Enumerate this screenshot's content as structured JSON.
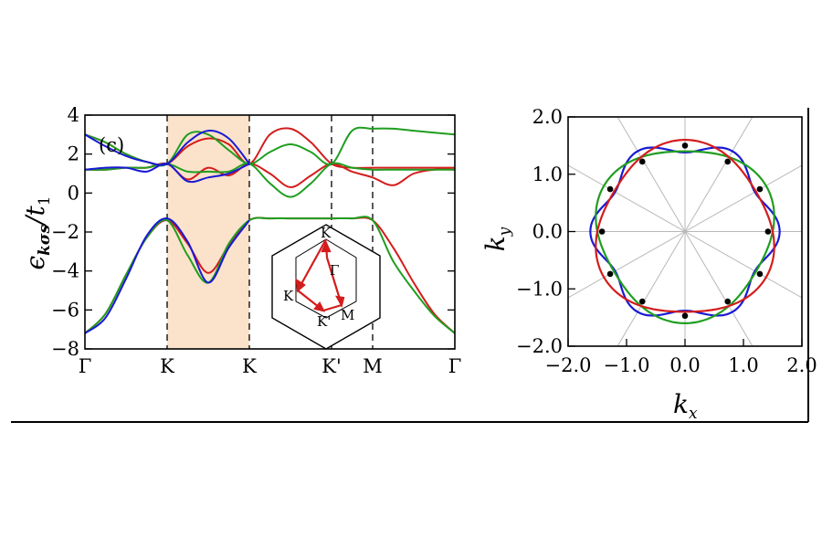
{
  "chart_data": [
    {
      "type": "line",
      "panel_label": "(c)",
      "xlabel": "",
      "ylabel": "ϵ_{kσs}/t_1",
      "ylabel_parts": {
        "base": "ϵ",
        "sub": "kσs",
        "over": "/t",
        "over_sub": "1"
      },
      "ylim": [
        -8,
        4
      ],
      "yticks": [
        4,
        2,
        0,
        -2,
        -4,
        -6,
        -8
      ],
      "ytick_labels": [
        "4",
        "2",
        "0",
        "−2",
        "−4",
        "−6",
        "−8"
      ],
      "xticks": [
        0,
        1,
        2,
        3,
        3.5,
        4.5
      ],
      "xtick_labels": [
        "Γ",
        "K",
        "K",
        "K'",
        "M",
        "Γ"
      ],
      "xlim": [
        0,
        4.5
      ],
      "dashed_vlines": [
        1,
        2,
        3,
        3.5
      ],
      "highlight_region": {
        "x": [
          1,
          2
        ],
        "color": "#fbe2cb"
      },
      "series_colors": [
        "#d41c1c",
        "#1f9e1f",
        "#1a1ad4"
      ],
      "series": [
        {
          "color": "#d41c1c",
          "bands": [
            {
              "x": [
                0,
                0.25,
                0.5,
                0.75,
                1,
                1.25,
                1.5,
                1.75,
                2,
                2.25,
                2.5,
                2.75,
                3,
                3.25,
                3.5,
                3.75,
                4,
                4.25,
                4.5
              ],
              "y": [
                3.0,
                2.6,
                2.0,
                1.6,
                1.5,
                2.4,
                2.8,
                2.5,
                1.5,
                3.0,
                3.3,
                2.6,
                1.5,
                1.3,
                1.3,
                1.3,
                1.3,
                1.3,
                1.3
              ]
            },
            {
              "x": [
                0,
                0.25,
                0.5,
                0.75,
                1,
                1.25,
                1.5,
                1.75,
                2,
                2.25,
                2.5,
                2.75,
                3,
                3.25,
                3.5,
                3.75,
                4,
                4.25,
                4.5
              ],
              "y": [
                1.2,
                1.2,
                1.3,
                1.3,
                1.5,
                0.7,
                1.3,
                0.9,
                1.5,
                1.0,
                0.3,
                0.9,
                1.5,
                1.1,
                0.8,
                0.4,
                1.0,
                1.2,
                1.2
              ]
            },
            {
              "x": [
                0,
                0.25,
                0.5,
                0.75,
                1,
                1.25,
                1.5,
                1.75,
                2,
                2.25,
                2.5,
                2.75,
                3,
                3.25,
                3.5,
                3.75,
                4,
                4.25,
                4.5
              ],
              "y": [
                -7.2,
                -6.2,
                -4.2,
                -2.3,
                -1.4,
                -2.6,
                -4.1,
                -2.7,
                -1.4,
                -1.3,
                -1.3,
                -1.3,
                -1.3,
                -1.3,
                -1.4,
                -2.8,
                -4.6,
                -6.2,
                -7.2
              ]
            }
          ]
        },
        {
          "color": "#1f9e1f",
          "bands": [
            {
              "x": [
                0,
                0.25,
                0.5,
                0.75,
                1,
                1.25,
                1.5,
                1.75,
                2,
                2.25,
                2.5,
                2.75,
                3,
                3.25,
                3.5,
                3.75,
                4,
                4.25,
                4.5
              ],
              "y": [
                3.0,
                2.6,
                2.0,
                1.6,
                1.5,
                3.0,
                3.0,
                2.2,
                1.5,
                2.1,
                2.5,
                2.1,
                1.5,
                3.2,
                3.3,
                3.3,
                3.2,
                3.1,
                3.0
              ]
            },
            {
              "x": [
                0,
                0.25,
                0.5,
                0.75,
                1,
                1.25,
                1.5,
                1.75,
                2,
                2.25,
                2.5,
                2.75,
                3,
                3.25,
                3.5,
                3.75,
                4,
                4.25,
                4.5
              ],
              "y": [
                1.2,
                1.2,
                1.3,
                1.3,
                1.5,
                1.1,
                1.1,
                1.1,
                1.5,
                0.5,
                -0.2,
                0.5,
                1.5,
                1.3,
                1.2,
                1.2,
                1.2,
                1.2,
                1.2
              ]
            },
            {
              "x": [
                0,
                0.25,
                0.5,
                0.75,
                1,
                1.25,
                1.5,
                1.75,
                2,
                2.25,
                2.5,
                2.75,
                3,
                3.25,
                3.5,
                3.75,
                4,
                4.25,
                4.5
              ],
              "y": [
                -7.2,
                -6.2,
                -4.2,
                -2.3,
                -1.4,
                -3.2,
                -4.6,
                -2.6,
                -1.4,
                -1.3,
                -1.3,
                -1.3,
                -1.3,
                -1.3,
                -1.4,
                -3.5,
                -5.0,
                -6.3,
                -7.2
              ]
            }
          ]
        },
        {
          "color": "#1a1ad4",
          "bands": [
            {
              "x": [
                0,
                0.25,
                0.5,
                0.75,
                1,
                1.25,
                1.5,
                1.75,
                2
              ],
              "y": [
                3.0,
                2.4,
                1.9,
                1.6,
                1.5,
                2.6,
                3.2,
                2.8,
                1.5
              ]
            },
            {
              "x": [
                0,
                0.25,
                0.5,
                0.75,
                1,
                1.25,
                1.5,
                1.75,
                2
              ],
              "y": [
                1.2,
                1.3,
                1.3,
                1.1,
                1.5,
                0.6,
                0.8,
                1.0,
                1.5
              ]
            },
            {
              "x": [
                0,
                0.25,
                0.5,
                0.75,
                1,
                1.25,
                1.5,
                1.75,
                2
              ],
              "y": [
                -7.2,
                -6.4,
                -4.4,
                -2.2,
                -1.3,
                -2.5,
                -4.6,
                -2.8,
                -1.4
              ]
            }
          ]
        }
      ],
      "inset": {
        "type": "diagram",
        "labels": [
          "K",
          "K",
          "K'",
          "M",
          "Γ"
        ],
        "path_color": "#d41c1c"
      }
    },
    {
      "type": "line",
      "xlabel": "k_x",
      "ylabel": "k_y",
      "xlabel_parts": {
        "base": "k",
        "sub": "x"
      },
      "ylabel_parts": {
        "base": "k",
        "sub": "y"
      },
      "xlim": [
        -2.0,
        2.0
      ],
      "ylim": [
        -2.0,
        2.0
      ],
      "xticks": [
        -2.0,
        -1.0,
        0.0,
        1.0,
        2.0
      ],
      "yticks": [
        2.0,
        1.0,
        0.0,
        -1.0,
        -2.0
      ],
      "xtick_labels": [
        "−2.0",
        "−1.0",
        "0.0",
        "1.0",
        "2.0"
      ],
      "ytick_labels": [
        "2.0",
        "1.0",
        "0.0",
        "−1.0",
        "−2.0"
      ],
      "grid_radial_lines_deg": [
        0,
        30,
        60,
        90,
        120,
        150
      ],
      "series": [
        {
          "color": "#1a1ad4",
          "r0": 1.5,
          "a6": 0.12,
          "phase_deg": 0
        },
        {
          "color": "#1f9e1f",
          "r0": 1.5,
          "a3": 0.1,
          "phase3_deg": 90
        },
        {
          "color": "#d41c1c",
          "r0": 1.5,
          "a3": 0.1,
          "phase3_deg": -90
        }
      ],
      "intersection_points": [
        [
          0.0,
          1.5
        ],
        [
          0.73,
          1.22
        ],
        [
          1.28,
          0.74
        ],
        [
          1.42,
          0.0
        ],
        [
          1.28,
          -0.74
        ],
        [
          0.73,
          -1.22
        ],
        [
          0.0,
          -1.47
        ],
        [
          -0.73,
          -1.22
        ],
        [
          -1.28,
          -0.74
        ],
        [
          -1.42,
          0.0
        ],
        [
          -1.28,
          0.74
        ],
        [
          -0.73,
          1.22
        ]
      ]
    }
  ]
}
